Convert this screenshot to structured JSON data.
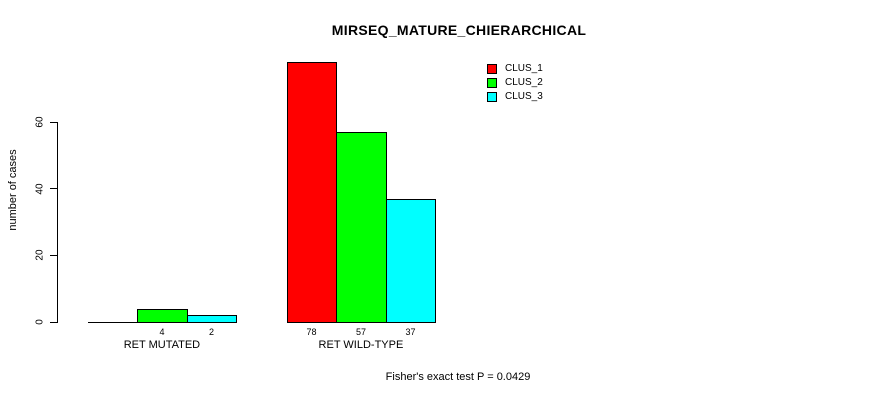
{
  "chart_data": {
    "type": "bar",
    "title": "MIRSEQ_MATURE_CHIERARCHICAL",
    "xlabel": "",
    "ylabel": "number of cases",
    "ylim": [
      0,
      60
    ],
    "yticks": [
      "0",
      "20",
      "40",
      "60"
    ],
    "grid": false,
    "legend_position": "top-right-inside",
    "categories": [
      "RET MUTATED",
      "RET WILD-TYPE"
    ],
    "series": [
      {
        "name": "CLUS_1",
        "color": "#ff0000",
        "values": [
          0,
          78
        ]
      },
      {
        "name": "CLUS_2",
        "color": "#00ff00",
        "values": [
          4,
          57
        ]
      },
      {
        "name": "CLUS_3",
        "color": "#00ffff",
        "values": [
          2,
          37
        ]
      }
    ],
    "bar_labels": [
      [
        "",
        "4",
        "2"
      ],
      [
        "78",
        "57",
        "37"
      ]
    ],
    "annotation": "Fisher's exact test P = 0.0429"
  }
}
